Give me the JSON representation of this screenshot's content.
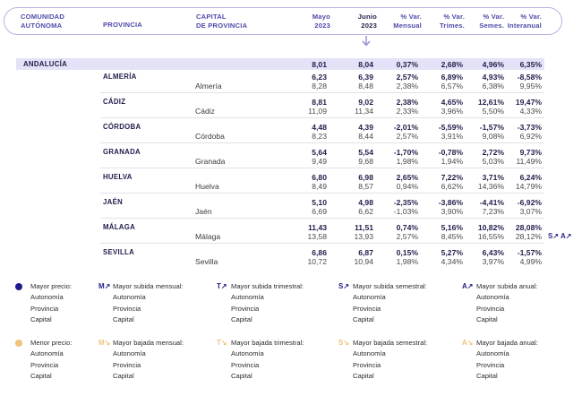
{
  "header": {
    "comunidad": [
      "COMUNIDAD",
      "AUTÓNOMA"
    ],
    "provincia": "PROVINCIA",
    "capital": [
      "CAPITAL",
      "DE PROVINCIA"
    ],
    "mayo": [
      "Mayo",
      "2023"
    ],
    "junio": [
      "Junio",
      "2023"
    ],
    "var_mensual": [
      "% Var.",
      "Mensual"
    ],
    "var_trimes": [
      "% Var.",
      "Trimes."
    ],
    "var_semes": [
      "% Var.",
      "Semes."
    ],
    "var_interanual": [
      "% Var.",
      "Interanual"
    ]
  },
  "region": {
    "name": "ANDALUCÍA",
    "values": [
      "8,01",
      "8,04",
      "0,37%",
      "2,68%",
      "4,96%",
      "6,35%"
    ]
  },
  "provinces": [
    {
      "province": "ALMERÍA",
      "capital": "Almería",
      "prov_values": [
        "6,23",
        "6,39",
        "2,57%",
        "6,89%",
        "4,93%",
        "-8,58%"
      ],
      "cap_values": [
        "8,28",
        "8,48",
        "2,38%",
        "6,57%",
        "6,38%",
        "9,95%"
      ]
    },
    {
      "province": "CÁDIZ",
      "capital": "Cádiz",
      "prov_values": [
        "8,81",
        "9,02",
        "2,38%",
        "4,65%",
        "12,61%",
        "19,47%"
      ],
      "cap_values": [
        "11,09",
        "11,34",
        "2,33%",
        "3,96%",
        "5,50%",
        "4,33%"
      ]
    },
    {
      "province": "CÓRDOBA",
      "capital": "Córdoba",
      "prov_values": [
        "4,48",
        "4,39",
        "-2,01%",
        "-5,59%",
        "-1,57%",
        "-3,73%"
      ],
      "cap_values": [
        "8,23",
        "8,44",
        "2,57%",
        "3,91%",
        "9,08%",
        "6,92%"
      ]
    },
    {
      "province": "GRANADA",
      "capital": "Granada",
      "prov_values": [
        "5,64",
        "5,54",
        "-1,70%",
        "-0,78%",
        "2,72%",
        "9,73%"
      ],
      "cap_values": [
        "9,49",
        "9,68",
        "1,98%",
        "1,94%",
        "5,03%",
        "11,49%"
      ]
    },
    {
      "province": "HUELVA",
      "capital": "Huelva",
      "prov_values": [
        "6,80",
        "6,98",
        "2,65%",
        "7,22%",
        "3,71%",
        "6,24%"
      ],
      "cap_values": [
        "8,49",
        "8,57",
        "0,94%",
        "6,62%",
        "14,36%",
        "14,79%"
      ]
    },
    {
      "province": "JAÉN",
      "capital": "Jaén",
      "prov_values": [
        "5,10",
        "4,98",
        "-2,35%",
        "-3,86%",
        "-4,41%",
        "-6,92%"
      ],
      "cap_values": [
        "6,69",
        "6,62",
        "-1,03%",
        "3,90%",
        "7,23%",
        "3,07%"
      ]
    },
    {
      "province": "MÁLAGA",
      "capital": "Málaga",
      "prov_values": [
        "11,43",
        "11,51",
        "0,74%",
        "5,16%",
        "10,82%",
        "28,08%"
      ],
      "cap_values": [
        "13,58",
        "13,93",
        "2,57%",
        "8,45%",
        "16,55%",
        "28,12%"
      ]
    },
    {
      "province": "SEVILLA",
      "capital": "Sevilla",
      "prov_values": [
        "6,86",
        "6,87",
        "0,15%",
        "5,27%",
        "6,43%",
        "-1,57%"
      ],
      "cap_values": [
        "10,72",
        "10,94",
        "1,98%",
        "4,34%",
        "3,97%",
        "4,99%"
      ]
    }
  ],
  "side_tag": "S↗ A↗",
  "legend": {
    "high": [
      {
        "symbol": "",
        "title": "Mayor precio:",
        "items": [
          "Autonomía",
          "Provincia",
          "Capital"
        ]
      },
      {
        "symbol": "M↗",
        "title": "Mayor subida mensual:",
        "items": [
          "Autonomía",
          "Provincia",
          "Capital"
        ]
      },
      {
        "symbol": "T↗",
        "title": "Mayor subida trimestral:",
        "items": [
          "Autonomía",
          "Provincia",
          "Capital"
        ]
      },
      {
        "symbol": "S↗",
        "title": "Mayor subida semestral:",
        "items": [
          "Autonomía",
          "Provincia",
          "Capital"
        ]
      },
      {
        "symbol": "A↗",
        "title": "Mayor subida anual:",
        "items": [
          "Autonomía",
          "Provincia",
          "Capital"
        ]
      }
    ],
    "low": [
      {
        "symbol": "",
        "title": "Menor precio:",
        "items": [
          "Autonomía",
          "Provincia",
          "Capital"
        ]
      },
      {
        "symbol": "M↘",
        "title": "Mayor bajada mensual:",
        "items": [
          "Autonomía",
          "Provincia",
          "Capital"
        ]
      },
      {
        "symbol": "T↘",
        "title": "Mayor bajada trimestral:",
        "items": [
          "Autonomía",
          "Provincia",
          "Capital"
        ]
      },
      {
        "symbol": "S↘",
        "title": "Mayor bajada semestral:",
        "items": [
          "Autonomía",
          "Provincia",
          "Capital"
        ]
      },
      {
        "symbol": "A↘",
        "title": "Mayor bajada anual:",
        "items": [
          "Autonomía",
          "Provincia",
          "Capital"
        ]
      }
    ]
  },
  "colors": {
    "accent": "#2b2a8a",
    "header_text": "#4d4aa8",
    "region_bg": "#e4e2f6",
    "high": "#1f1a8c",
    "low": "#f1c27d"
  }
}
